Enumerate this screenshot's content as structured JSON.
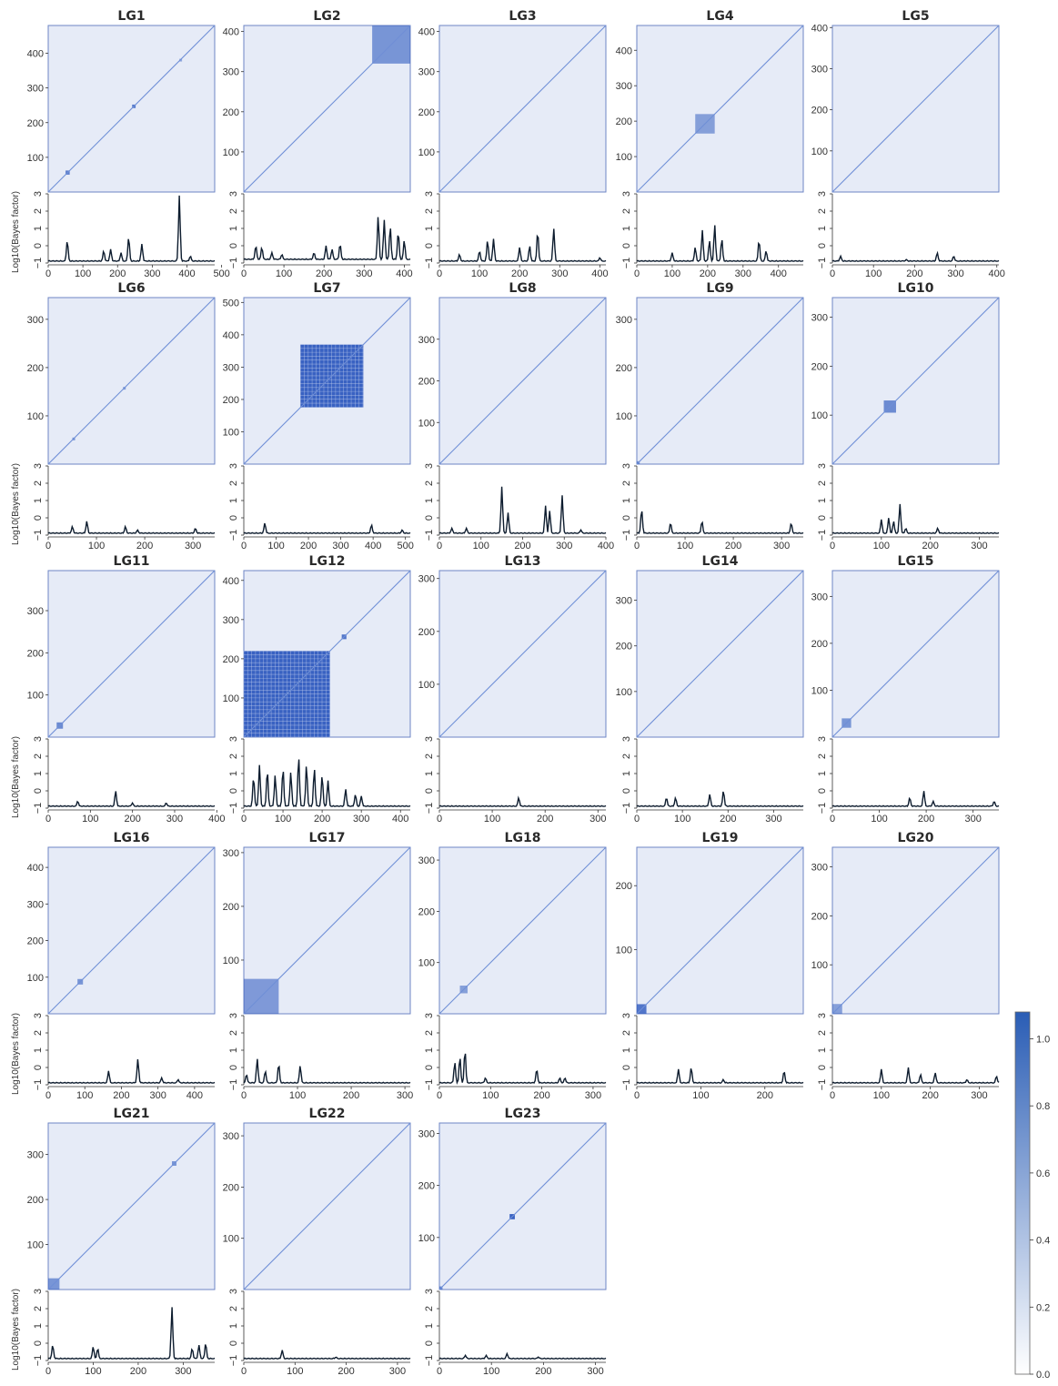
{
  "colors": {
    "heat_background": "#e6ebf7",
    "heat_frame": "#6e86c4",
    "diagonal": "#6f8fd6",
    "block": "#3b64c4",
    "block_dense": "#2f5bbf",
    "trace": "#0d1c2e",
    "colorbar_top": "#2a5db5",
    "colorbar_bottom": "#ffffff"
  },
  "bayes_ylabel": "Log10(Bayes factor)",
  "bayes_yticks": [
    "3",
    "2",
    "1",
    "0",
    "−1"
  ],
  "colorbar": {
    "ticks": [
      "1.0",
      "0.8",
      "0.6",
      "0.4",
      "0.2",
      "0.0"
    ],
    "values": [
      1.0,
      0.8,
      0.6,
      0.4,
      0.2,
      0.0
    ],
    "range": [
      0,
      1.08
    ]
  },
  "chart_data": [
    {
      "type": "heatmap",
      "title": "LG1",
      "n": 480,
      "y_ticks": [
        100,
        200,
        300,
        400
      ],
      "x_ticks": [
        0,
        100,
        200,
        300,
        400,
        500
      ],
      "blocks": [
        {
          "start": 50,
          "end": 62,
          "strength": 0.7
        },
        {
          "start": 242,
          "end": 252,
          "strength": 0.8
        },
        {
          "start": 378,
          "end": 384,
          "strength": 0.3
        }
      ],
      "bayes": {
        "baseline": -0.9,
        "peaks": [
          [
            55,
            0.3
          ],
          [
            160,
            -0.3
          ],
          [
            180,
            -0.2
          ],
          [
            210,
            -0.4
          ],
          [
            232,
            0.5
          ],
          [
            270,
            0.1
          ],
          [
            378,
            2.9
          ],
          [
            410,
            -0.6
          ]
        ]
      }
    },
    {
      "type": "heatmap",
      "title": "LG2",
      "n": 415,
      "y_ticks": [
        100,
        200,
        300,
        400
      ],
      "x_ticks": [
        0,
        100,
        200,
        300,
        400
      ],
      "blocks": [
        {
          "start": 320,
          "end": 415,
          "strength": 0.5
        }
      ],
      "bayes": {
        "baseline": -0.8,
        "peaks": [
          [
            30,
            0.0
          ],
          [
            45,
            -0.1
          ],
          [
            70,
            -0.4
          ],
          [
            95,
            -0.5
          ],
          [
            175,
            -0.4
          ],
          [
            205,
            0.0
          ],
          [
            220,
            -0.2
          ],
          [
            240,
            0.1
          ],
          [
            335,
            1.7
          ],
          [
            350,
            1.5
          ],
          [
            365,
            1.1
          ],
          [
            385,
            0.8
          ],
          [
            400,
            0.3
          ]
        ]
      }
    },
    {
      "type": "heatmap",
      "title": "LG3",
      "n": 415,
      "y_ticks": [
        100,
        200,
        300,
        400
      ],
      "x_ticks": [
        0,
        100,
        200,
        300,
        400
      ],
      "blocks": [],
      "bayes": {
        "baseline": -0.9,
        "peaks": [
          [
            50,
            -0.5
          ],
          [
            100,
            -0.3
          ],
          [
            120,
            0.3
          ],
          [
            135,
            0.4
          ],
          [
            200,
            -0.1
          ],
          [
            225,
            0.0
          ],
          [
            245,
            0.8
          ],
          [
            285,
            1.0
          ],
          [
            400,
            -0.7
          ]
        ]
      }
    },
    {
      "type": "heatmap",
      "title": "LG4",
      "n": 470,
      "y_ticks": [
        100,
        200,
        300,
        400
      ],
      "x_ticks": [
        0,
        100,
        200,
        300,
        400
      ],
      "blocks": [
        {
          "start": 165,
          "end": 220,
          "strength": 0.4
        }
      ],
      "bayes": {
        "baseline": -0.9,
        "peaks": [
          [
            100,
            -0.4
          ],
          [
            165,
            -0.1
          ],
          [
            185,
            0.9
          ],
          [
            205,
            0.3
          ],
          [
            220,
            1.2
          ],
          [
            240,
            0.4
          ],
          [
            345,
            0.3
          ],
          [
            365,
            -0.3
          ]
        ]
      }
    },
    {
      "type": "heatmap",
      "title": "LG5",
      "n": 405,
      "y_ticks": [
        100,
        200,
        300,
        400
      ],
      "x_ticks": [
        0,
        100,
        200,
        300,
        400
      ],
      "blocks": [],
      "bayes": {
        "baseline": -0.9,
        "peaks": [
          [
            20,
            -0.6
          ],
          [
            180,
            -0.8
          ],
          [
            255,
            -0.4
          ],
          [
            295,
            -0.6
          ]
        ]
      }
    },
    {
      "type": "heatmap",
      "title": "LG6",
      "n": 345,
      "y_ticks": [
        100,
        200,
        300
      ],
      "x_ticks": [
        0,
        100,
        200,
        300
      ],
      "blocks": [
        {
          "start": 50,
          "end": 55,
          "strength": 0.5
        },
        {
          "start": 155,
          "end": 160,
          "strength": 0.4
        }
      ],
      "bayes": {
        "baseline": -0.9,
        "peaks": [
          [
            50,
            -0.5
          ],
          [
            80,
            -0.2
          ],
          [
            160,
            -0.5
          ],
          [
            185,
            -0.7
          ],
          [
            305,
            -0.6
          ]
        ]
      }
    },
    {
      "type": "heatmap",
      "title": "LG7",
      "n": 515,
      "y_ticks": [
        100,
        200,
        300,
        400,
        500
      ],
      "x_ticks": [
        0,
        100,
        200,
        300,
        400,
        500
      ],
      "blocks": [
        {
          "start": 175,
          "end": 370,
          "strength": 1.0
        }
      ],
      "bayes": {
        "baseline": -0.9,
        "peaks": [
          [
            65,
            -0.3
          ],
          [
            395,
            -0.4
          ],
          [
            490,
            -0.7
          ]
        ]
      }
    },
    {
      "type": "heatmap",
      "title": "LG8",
      "n": 400,
      "y_ticks": [
        100,
        200,
        300
      ],
      "x_ticks": [
        0,
        100,
        200,
        300,
        400
      ],
      "blocks": [],
      "bayes": {
        "baseline": -0.9,
        "peaks": [
          [
            30,
            -0.6
          ],
          [
            65,
            -0.6
          ],
          [
            150,
            1.8
          ],
          [
            165,
            0.3
          ],
          [
            255,
            0.7
          ],
          [
            265,
            0.4
          ],
          [
            295,
            1.3
          ],
          [
            340,
            -0.7
          ]
        ]
      }
    },
    {
      "type": "heatmap",
      "title": "LG9",
      "n": 345,
      "y_ticks": [
        100,
        200,
        300
      ],
      "x_ticks": [
        0,
        100,
        200,
        300
      ],
      "blocks": [
        {
          "start": 0,
          "end": 6,
          "strength": 0.5
        }
      ],
      "bayes": {
        "baseline": -0.9,
        "peaks": [
          [
            10,
            0.5
          ],
          [
            70,
            -0.3
          ],
          [
            135,
            -0.2
          ],
          [
            320,
            -0.3
          ]
        ]
      }
    },
    {
      "type": "heatmap",
      "title": "LG10",
      "n": 340,
      "y_ticks": [
        100,
        200,
        300
      ],
      "x_ticks": [
        0,
        100,
        200,
        300
      ],
      "blocks": [
        {
          "start": 105,
          "end": 130,
          "strength": 0.6
        }
      ],
      "bayes": {
        "baseline": -0.9,
        "peaks": [
          [
            100,
            -0.1
          ],
          [
            115,
            0.0
          ],
          [
            125,
            -0.2
          ],
          [
            138,
            0.8
          ],
          [
            150,
            -0.6
          ],
          [
            215,
            -0.6
          ]
        ]
      }
    },
    {
      "type": "heatmap",
      "title": "LG11",
      "n": 395,
      "y_ticks": [
        100,
        200,
        300
      ],
      "x_ticks": [
        0,
        100,
        200,
        300,
        400
      ],
      "blocks": [
        {
          "start": 20,
          "end": 35,
          "strength": 0.6
        }
      ],
      "bayes": {
        "baseline": -0.9,
        "peaks": [
          [
            70,
            -0.6
          ],
          [
            160,
            0.0
          ],
          [
            200,
            -0.7
          ],
          [
            280,
            -0.7
          ]
        ]
      }
    },
    {
      "type": "heatmap",
      "title": "LG12",
      "n": 425,
      "y_ticks": [
        100,
        200,
        300,
        400
      ],
      "x_ticks": [
        0,
        100,
        200,
        300,
        400
      ],
      "blocks": [
        {
          "start": 0,
          "end": 220,
          "strength": 1.0
        },
        {
          "start": 250,
          "end": 262,
          "strength": 0.8
        }
      ],
      "bayes": {
        "baseline": -0.9,
        "peaks": [
          [
            25,
            0.8
          ],
          [
            40,
            1.5
          ],
          [
            60,
            1.2
          ],
          [
            80,
            0.9
          ],
          [
            100,
            1.3
          ],
          [
            120,
            1.1
          ],
          [
            140,
            2.0
          ],
          [
            160,
            1.5
          ],
          [
            180,
            1.3
          ],
          [
            200,
            0.9
          ],
          [
            215,
            0.6
          ],
          [
            260,
            0.1
          ],
          [
            285,
            -0.2
          ],
          [
            300,
            -0.3
          ]
        ]
      }
    },
    {
      "type": "heatmap",
      "title": "LG13",
      "n": 315,
      "y_ticks": [
        100,
        200,
        300
      ],
      "x_ticks": [
        0,
        100,
        200,
        300
      ],
      "blocks": [],
      "bayes": {
        "baseline": -0.9,
        "peaks": [
          [
            150,
            -0.4
          ]
        ]
      }
    },
    {
      "type": "heatmap",
      "title": "LG14",
      "n": 365,
      "y_ticks": [
        100,
        200,
        300
      ],
      "x_ticks": [
        0,
        100,
        200,
        300
      ],
      "blocks": [],
      "bayes": {
        "baseline": -0.9,
        "peaks": [
          [
            65,
            -0.4
          ],
          [
            85,
            -0.4
          ],
          [
            160,
            -0.2
          ],
          [
            190,
            0.0
          ]
        ]
      }
    },
    {
      "type": "heatmap",
      "title": "LG15",
      "n": 355,
      "y_ticks": [
        100,
        200,
        300
      ],
      "x_ticks": [
        0,
        100,
        200,
        300
      ],
      "blocks": [
        {
          "start": 20,
          "end": 40,
          "strength": 0.5
        }
      ],
      "bayes": {
        "baseline": -0.9,
        "peaks": [
          [
            165,
            -0.4
          ],
          [
            195,
            0.0
          ],
          [
            215,
            -0.6
          ],
          [
            345,
            -0.6
          ]
        ]
      }
    },
    {
      "type": "heatmap",
      "title": "LG16",
      "n": 455,
      "y_ticks": [
        100,
        200,
        300,
        400
      ],
      "x_ticks": [
        0,
        100,
        200,
        300,
        400
      ],
      "blocks": [
        {
          "start": 80,
          "end": 95,
          "strength": 0.5
        }
      ],
      "bayes": {
        "baseline": -0.9,
        "peaks": [
          [
            165,
            -0.2
          ],
          [
            245,
            0.5
          ],
          [
            310,
            -0.6
          ],
          [
            355,
            -0.7
          ]
        ]
      }
    },
    {
      "type": "heatmap",
      "title": "LG17",
      "n": 310,
      "y_ticks": [
        100,
        200,
        300
      ],
      "x_ticks": [
        0,
        100,
        200,
        300
      ],
      "blocks": [
        {
          "start": 0,
          "end": 65,
          "strength": 0.45
        }
      ],
      "bayes": {
        "baseline": -0.9,
        "peaks": [
          [
            5,
            -0.4
          ],
          [
            25,
            0.5
          ],
          [
            40,
            -0.2
          ],
          [
            65,
            0.2
          ],
          [
            105,
            0.1
          ]
        ]
      }
    },
    {
      "type": "heatmap",
      "title": "LG18",
      "n": 325,
      "y_ticks": [
        100,
        200,
        300
      ],
      "x_ticks": [
        0,
        100,
        200,
        300
      ],
      "blocks": [
        {
          "start": 40,
          "end": 55,
          "strength": 0.4
        }
      ],
      "bayes": {
        "baseline": -0.9,
        "peaks": [
          [
            30,
            0.3
          ],
          [
            40,
            0.6
          ],
          [
            50,
            1.0
          ],
          [
            90,
            -0.6
          ],
          [
            190,
            -0.1
          ],
          [
            235,
            -0.6
          ],
          [
            245,
            -0.6
          ]
        ]
      }
    },
    {
      "type": "heatmap",
      "title": "LG19",
      "n": 260,
      "y_ticks": [
        100,
        200
      ],
      "x_ticks": [
        0,
        100,
        200
      ],
      "blocks": [
        {
          "start": 0,
          "end": 15,
          "strength": 0.8
        }
      ],
      "bayes": {
        "baseline": -0.9,
        "peaks": [
          [
            65,
            -0.1
          ],
          [
            85,
            0.0
          ],
          [
            135,
            -0.7
          ],
          [
            230,
            -0.2
          ]
        ]
      }
    },
    {
      "type": "heatmap",
      "title": "LG20",
      "n": 340,
      "y_ticks": [
        100,
        200,
        300
      ],
      "x_ticks": [
        0,
        100,
        200,
        300
      ],
      "blocks": [
        {
          "start": 0,
          "end": 20,
          "strength": 0.4
        }
      ],
      "bayes": {
        "baseline": -0.9,
        "peaks": [
          [
            100,
            -0.1
          ],
          [
            155,
            0.0
          ],
          [
            180,
            -0.4
          ],
          [
            210,
            -0.3
          ],
          [
            275,
            -0.7
          ],
          [
            335,
            -0.5
          ]
        ]
      }
    },
    {
      "type": "heatmap",
      "title": "LG21",
      "n": 370,
      "y_ticks": [
        100,
        200,
        300
      ],
      "x_ticks": [
        0,
        100,
        200,
        300
      ],
      "blocks": [
        {
          "start": 0,
          "end": 25,
          "strength": 0.5
        },
        {
          "start": 275,
          "end": 285,
          "strength": 0.5
        }
      ],
      "bayes": {
        "baseline": -0.9,
        "peaks": [
          [
            10,
            -0.1
          ],
          [
            100,
            -0.2
          ],
          [
            110,
            -0.3
          ],
          [
            275,
            2.1
          ],
          [
            320,
            -0.3
          ],
          [
            335,
            -0.1
          ],
          [
            350,
            0.0
          ]
        ]
      }
    },
    {
      "type": "heatmap",
      "title": "LG22",
      "n": 325,
      "y_ticks": [
        100,
        200,
        300
      ],
      "x_ticks": [
        0,
        100,
        200,
        300
      ],
      "blocks": [],
      "bayes": {
        "baseline": -0.9,
        "peaks": [
          [
            75,
            -0.4
          ],
          [
            180,
            -0.8
          ]
        ]
      }
    },
    {
      "type": "heatmap",
      "title": "LG23",
      "n": 320,
      "y_ticks": [
        100,
        200,
        300
      ],
      "x_ticks": [
        0,
        100,
        200,
        300
      ],
      "blocks": [
        {
          "start": 135,
          "end": 145,
          "strength": 1.0
        },
        {
          "start": 0,
          "end": 6,
          "strength": 0.6
        }
      ],
      "bayes": {
        "baseline": -0.9,
        "peaks": [
          [
            50,
            -0.7
          ],
          [
            90,
            -0.7
          ],
          [
            130,
            -0.6
          ],
          [
            190,
            -0.8
          ]
        ]
      }
    }
  ]
}
